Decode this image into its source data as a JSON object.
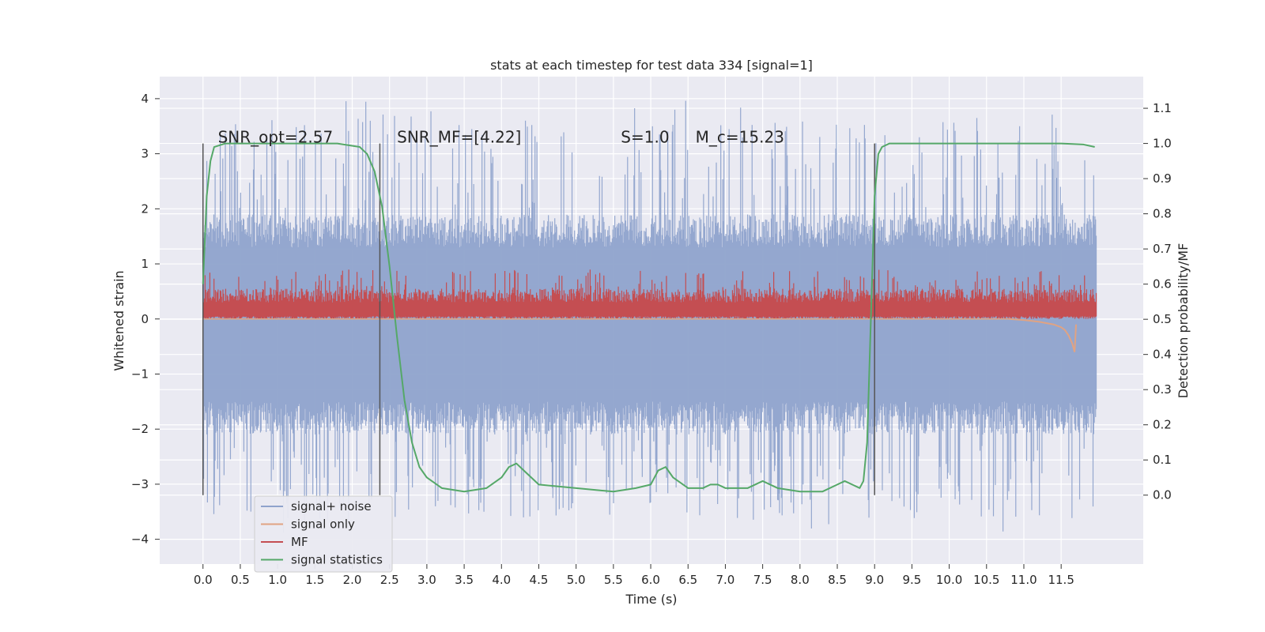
{
  "chart_data": {
    "type": "line",
    "title": "stats at each timestep for test data 334 [signal=1]",
    "xlabel": "Time (s)",
    "ylabel": "Whitened strain",
    "y2label": "Detection probability/MF",
    "xlim": [
      -0.58,
      12.6
    ],
    "ylim": [
      -4.45,
      4.4
    ],
    "y2lim": [
      -0.196,
      1.19
    ],
    "grid": true,
    "legend_position": "lower-left",
    "x_ticks": [
      "0.0",
      "0.5",
      "1.0",
      "1.5",
      "2.0",
      "2.5",
      "3.0",
      "3.5",
      "4.0",
      "4.5",
      "5.0",
      "5.5",
      "6.0",
      "6.5",
      "7.0",
      "7.5",
      "8.0",
      "8.5",
      "9.0",
      "9.5",
      "10.0",
      "10.5",
      "11.0",
      "11.5"
    ],
    "y_ticks": [
      "4",
      "3",
      "2",
      "1",
      "0",
      "−1",
      "−2",
      "−3",
      "−4"
    ],
    "y_tick_values": [
      4,
      3,
      2,
      1,
      0,
      -1,
      -2,
      -3,
      -4
    ],
    "y2_ticks": [
      "1.1",
      "1.0",
      "0.9",
      "0.8",
      "0.7",
      "0.6",
      "0.5",
      "0.4",
      "0.3",
      "0.2",
      "0.1",
      "0.0"
    ],
    "y2_tick_values": [
      1.1,
      1.0,
      0.9,
      0.8,
      0.7,
      0.6,
      0.5,
      0.4,
      0.3,
      0.2,
      0.1,
      0.0
    ],
    "annotations": [
      {
        "text": "SNR_opt=2.57",
        "x": 0.2,
        "y": 3.2
      },
      {
        "text": "SNR_MF=[4.22]",
        "x": 2.6,
        "y": 3.2
      },
      {
        "text": "S=1.0",
        "x": 5.6,
        "y": 3.2
      },
      {
        "text": "M_c=15.23",
        "x": 6.6,
        "y": 3.2
      }
    ],
    "vertical_markers": [
      0.0,
      2.37,
      9.0
    ],
    "noise_envelope": {
      "t_range": [
        0.0,
        11.97
      ],
      "band_high": 1.9,
      "band_low": -2.1,
      "spike_max": 4.0,
      "spike_min": -3.9
    },
    "series": [
      {
        "name": "signal+ noise",
        "color": "#8fa3cc",
        "axis": "left",
        "kind": "noise"
      },
      {
        "name": "signal only",
        "color": "#e0a383",
        "axis": "left",
        "x": [
          10.8,
          11.0,
          11.2,
          11.4,
          11.5,
          11.55,
          11.6,
          11.65,
          11.68,
          11.7
        ],
        "y": [
          0.0,
          -0.02,
          -0.05,
          -0.1,
          -0.15,
          -0.2,
          -0.3,
          -0.45,
          -0.6,
          -0.1
        ]
      },
      {
        "name": "MF",
        "color": "#c44e52",
        "axis": "left",
        "kind": "noise_positive",
        "band": [
          0.05,
          0.55
        ],
        "spike_max": 0.9
      },
      {
        "name": "signal statistics",
        "color": "#55a868",
        "axis": "right",
        "x": [
          0.0,
          0.05,
          0.1,
          0.15,
          0.3,
          1.0,
          1.8,
          2.1,
          2.2,
          2.3,
          2.4,
          2.5,
          2.6,
          2.7,
          2.8,
          2.9,
          3.0,
          3.2,
          3.5,
          3.8,
          4.0,
          4.1,
          4.2,
          4.3,
          4.5,
          5.0,
          5.5,
          5.8,
          6.0,
          6.1,
          6.2,
          6.3,
          6.5,
          6.7,
          6.8,
          6.9,
          7.0,
          7.3,
          7.5,
          7.7,
          8.0,
          8.3,
          8.5,
          8.6,
          8.7,
          8.8,
          8.85,
          8.9,
          8.95,
          9.0,
          9.05,
          9.1,
          9.2,
          9.5,
          10.5,
          11.5,
          11.8,
          11.95
        ],
        "y": [
          0.6,
          0.85,
          0.95,
          0.99,
          1.0,
          1.0,
          1.0,
          0.99,
          0.97,
          0.92,
          0.82,
          0.65,
          0.45,
          0.27,
          0.15,
          0.08,
          0.05,
          0.02,
          0.01,
          0.02,
          0.05,
          0.08,
          0.09,
          0.07,
          0.03,
          0.02,
          0.01,
          0.02,
          0.03,
          0.07,
          0.08,
          0.05,
          0.02,
          0.02,
          0.03,
          0.03,
          0.02,
          0.02,
          0.04,
          0.02,
          0.01,
          0.01,
          0.03,
          0.04,
          0.03,
          0.02,
          0.04,
          0.15,
          0.5,
          0.85,
          0.97,
          0.99,
          1.0,
          1.0,
          1.0,
          1.0,
          0.997,
          0.99
        ]
      }
    ]
  }
}
